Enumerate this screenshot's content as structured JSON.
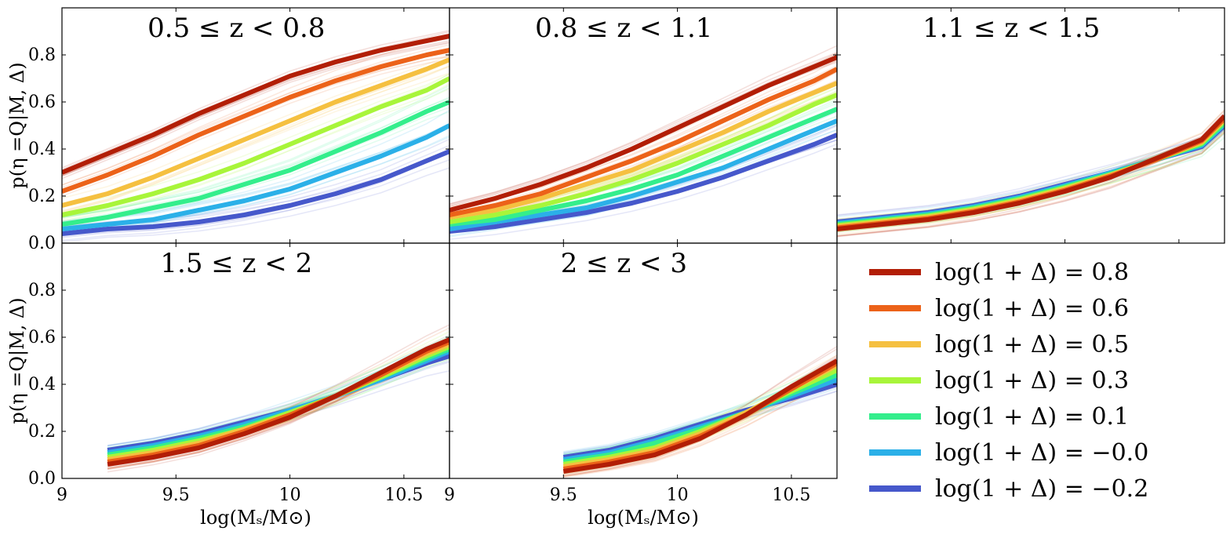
{
  "chart_data": {
    "type": "line",
    "figure_layout": "2x3 grid, legend in bottom-right cell",
    "ylabel": "p(η =Q|M, Δ)",
    "xlabel": "log(Mₛ/M⊙)",
    "x_ticks": [
      "9",
      "9.5",
      "10",
      "10.5"
    ],
    "y_ticks": [
      "0.0",
      "0.2",
      "0.4",
      "0.6",
      "0.8"
    ],
    "xlim": [
      9,
      10.7
    ],
    "ylim": [
      0,
      1.0
    ],
    "grid": false,
    "legend_placement": "bottom-right panel",
    "series_meta": [
      {
        "name": "log(1 + Δ) = 0.8",
        "color": "#b21e06"
      },
      {
        "name": "log(1 + Δ) = 0.6",
        "color": "#ec6219"
      },
      {
        "name": "log(1 + Δ) = 0.5",
        "color": "#f5c040"
      },
      {
        "name": "log(1 + Δ) = 0.3",
        "color": "#a8f53a"
      },
      {
        "name": "log(1 + Δ) = 0.1",
        "color": "#34ee8c"
      },
      {
        "name": "log(1 + Δ) = −0.0",
        "color": "#2bb0e8"
      },
      {
        "name": "log(1 + Δ) = −0.2",
        "color": "#4658cb"
      }
    ],
    "panels": [
      {
        "title": "0.5 ≤ z < 0.8",
        "x": [
          9.0,
          9.2,
          9.4,
          9.6,
          9.8,
          10.0,
          10.2,
          10.4,
          10.6,
          10.7
        ],
        "series": [
          {
            "values": [
              0.3,
              0.38,
              0.46,
              0.55,
              0.63,
              0.71,
              0.77,
              0.82,
              0.86,
              0.88
            ]
          },
          {
            "values": [
              0.22,
              0.29,
              0.37,
              0.46,
              0.54,
              0.62,
              0.69,
              0.75,
              0.8,
              0.82
            ]
          },
          {
            "values": [
              0.16,
              0.21,
              0.28,
              0.36,
              0.44,
              0.52,
              0.6,
              0.67,
              0.74,
              0.78
            ]
          },
          {
            "values": [
              0.12,
              0.16,
              0.21,
              0.27,
              0.34,
              0.42,
              0.5,
              0.58,
              0.65,
              0.7
            ]
          },
          {
            "values": [
              0.08,
              0.11,
              0.15,
              0.19,
              0.25,
              0.31,
              0.39,
              0.47,
              0.56,
              0.6
            ]
          },
          {
            "values": [
              0.06,
              0.08,
              0.1,
              0.14,
              0.18,
              0.23,
              0.3,
              0.37,
              0.45,
              0.5
            ]
          },
          {
            "values": [
              0.04,
              0.06,
              0.07,
              0.09,
              0.12,
              0.16,
              0.21,
              0.27,
              0.35,
              0.39
            ]
          }
        ]
      },
      {
        "title": "0.8 ≤ z < 1.1",
        "x": [
          9.0,
          9.2,
          9.4,
          9.6,
          9.8,
          10.0,
          10.2,
          10.4,
          10.6,
          10.7
        ],
        "series": [
          {
            "values": [
              0.14,
              0.19,
              0.25,
              0.32,
              0.4,
              0.49,
              0.58,
              0.67,
              0.75,
              0.79
            ]
          },
          {
            "values": [
              0.12,
              0.16,
              0.21,
              0.28,
              0.35,
              0.43,
              0.52,
              0.61,
              0.69,
              0.74
            ]
          },
          {
            "values": [
              0.11,
              0.14,
              0.19,
              0.25,
              0.31,
              0.39,
              0.47,
              0.56,
              0.64,
              0.68
            ]
          },
          {
            "values": [
              0.09,
              0.12,
              0.16,
              0.21,
              0.27,
              0.34,
              0.42,
              0.5,
              0.59,
              0.63
            ]
          },
          {
            "values": [
              0.08,
              0.1,
              0.14,
              0.18,
              0.23,
              0.29,
              0.37,
              0.45,
              0.53,
              0.57
            ]
          },
          {
            "values": [
              0.06,
              0.09,
              0.12,
              0.15,
              0.2,
              0.26,
              0.32,
              0.4,
              0.48,
              0.52
            ]
          },
          {
            "values": [
              0.05,
              0.07,
              0.1,
              0.13,
              0.17,
              0.22,
              0.28,
              0.35,
              0.42,
              0.46
            ]
          }
        ]
      },
      {
        "title": "1.1 ≤ z < 1.5",
        "x": [
          9.0,
          9.2,
          9.4,
          9.6,
          9.8,
          10.0,
          10.2,
          10.4,
          10.6,
          10.7
        ],
        "series": [
          {
            "values": [
              0.06,
              0.08,
              0.1,
              0.13,
              0.17,
              0.22,
              0.28,
              0.36,
              0.44,
              0.54
            ]
          },
          {
            "values": [
              0.065,
              0.085,
              0.105,
              0.135,
              0.175,
              0.225,
              0.285,
              0.355,
              0.435,
              0.53
            ]
          },
          {
            "values": [
              0.07,
              0.09,
              0.11,
              0.14,
              0.18,
              0.23,
              0.29,
              0.355,
              0.43,
              0.525
            ]
          },
          {
            "values": [
              0.075,
              0.095,
              0.115,
              0.145,
              0.185,
              0.235,
              0.29,
              0.355,
              0.425,
              0.52
            ]
          },
          {
            "values": [
              0.08,
              0.1,
              0.12,
              0.15,
              0.19,
              0.24,
              0.295,
              0.355,
              0.42,
              0.51
            ]
          },
          {
            "values": [
              0.085,
              0.105,
              0.125,
              0.155,
              0.195,
              0.245,
              0.3,
              0.355,
              0.415,
              0.505
            ]
          },
          {
            "values": [
              0.09,
              0.11,
              0.13,
              0.16,
              0.2,
              0.25,
              0.3,
              0.355,
              0.41,
              0.5
            ]
          }
        ]
      },
      {
        "title": "1.5 ≤ z < 2",
        "x": [
          9.2,
          9.4,
          9.6,
          9.8,
          10.0,
          10.2,
          10.4,
          10.6,
          10.7
        ],
        "series": [
          {
            "values": [
              0.06,
              0.09,
              0.13,
              0.19,
              0.26,
              0.35,
              0.45,
              0.55,
              0.59
            ]
          },
          {
            "values": [
              0.07,
              0.1,
              0.14,
              0.2,
              0.27,
              0.35,
              0.44,
              0.54,
              0.58
            ]
          },
          {
            "values": [
              0.08,
              0.11,
              0.15,
              0.21,
              0.27,
              0.35,
              0.44,
              0.53,
              0.57
            ]
          },
          {
            "values": [
              0.09,
              0.12,
              0.16,
              0.21,
              0.28,
              0.35,
              0.43,
              0.52,
              0.56
            ]
          },
          {
            "values": [
              0.1,
              0.13,
              0.17,
              0.22,
              0.28,
              0.35,
              0.43,
              0.51,
              0.55
            ]
          },
          {
            "values": [
              0.11,
              0.14,
              0.18,
              0.23,
              0.29,
              0.35,
              0.42,
              0.5,
              0.54
            ]
          },
          {
            "values": [
              0.12,
              0.15,
              0.19,
              0.24,
              0.29,
              0.35,
              0.42,
              0.49,
              0.52
            ]
          }
        ]
      },
      {
        "title": "2 ≤ z < 3",
        "x": [
          9.5,
          9.7,
          9.9,
          10.1,
          10.3,
          10.5,
          10.7
        ],
        "series": [
          {
            "values": [
              0.03,
              0.06,
              0.1,
              0.17,
              0.27,
              0.39,
              0.5
            ]
          },
          {
            "values": [
              0.04,
              0.07,
              0.11,
              0.18,
              0.27,
              0.38,
              0.49
            ]
          },
          {
            "values": [
              0.05,
              0.08,
              0.12,
              0.19,
              0.28,
              0.38,
              0.48
            ]
          },
          {
            "values": [
              0.06,
              0.09,
              0.13,
              0.2,
              0.28,
              0.37,
              0.46
            ]
          },
          {
            "values": [
              0.07,
              0.1,
              0.15,
              0.21,
              0.28,
              0.36,
              0.44
            ]
          },
          {
            "values": [
              0.08,
              0.11,
              0.16,
              0.22,
              0.28,
              0.35,
              0.42
            ]
          },
          {
            "values": [
              0.09,
              0.12,
              0.17,
              0.23,
              0.29,
              0.34,
              0.4
            ]
          }
        ]
      }
    ]
  }
}
